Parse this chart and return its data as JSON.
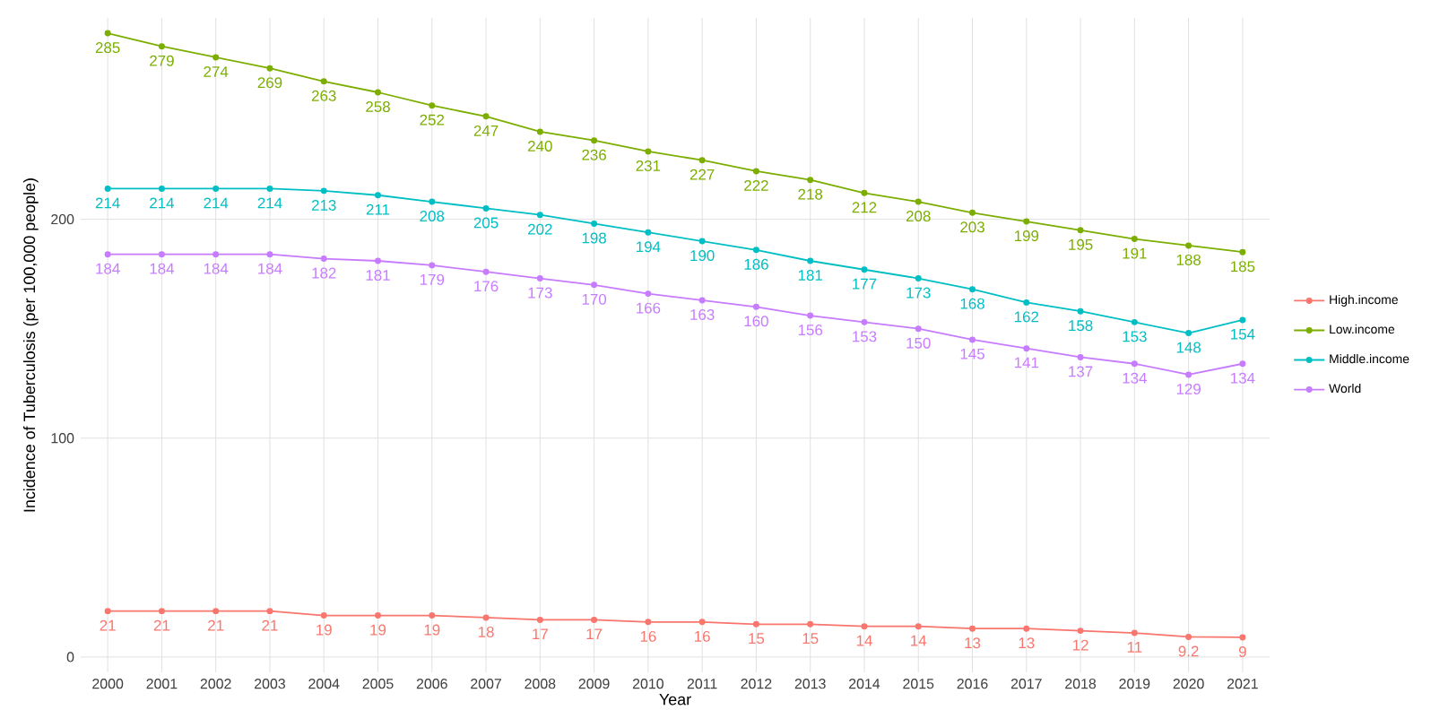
{
  "chart_data": {
    "type": "line",
    "xlabel": "Year",
    "ylabel": "Incidence of Tuberculosis (per 100,000 people)",
    "categories": [
      "2000",
      "2001",
      "2002",
      "2003",
      "2004",
      "2005",
      "2006",
      "2007",
      "2008",
      "2009",
      "2010",
      "2011",
      "2012",
      "2013",
      "2014",
      "2015",
      "2016",
      "2017",
      "2018",
      "2019",
      "2020",
      "2021"
    ],
    "series": [
      {
        "name": "High.income",
        "color": "#f8766d",
        "values": [
          21,
          21,
          21,
          21,
          19,
          19,
          19,
          18,
          17,
          17,
          16,
          16,
          15,
          15,
          14,
          14,
          13,
          13,
          12,
          11,
          9.2,
          9
        ]
      },
      {
        "name": "Low.income",
        "color": "#7cae00",
        "values": [
          285,
          279,
          274,
          269,
          263,
          258,
          252,
          247,
          240,
          236,
          231,
          227,
          222,
          218,
          212,
          208,
          203,
          199,
          195,
          191,
          188,
          185
        ]
      },
      {
        "name": "Middle.income",
        "color": "#00bfc4",
        "values": [
          214,
          214,
          214,
          214,
          213,
          211,
          208,
          205,
          202,
          198,
          194,
          190,
          186,
          181,
          177,
          173,
          168,
          162,
          158,
          153,
          148,
          154
        ]
      },
      {
        "name": "World",
        "color": "#c77cff",
        "values": [
          184,
          184,
          184,
          184,
          182,
          181,
          179,
          176,
          173,
          170,
          166,
          163,
          160,
          156,
          153,
          150,
          145,
          141,
          137,
          134,
          129,
          134
        ]
      }
    ],
    "ylim": [
      -7,
      292
    ],
    "yticks": [
      0,
      100,
      200
    ],
    "grid": true,
    "legend": "right",
    "marker": "circle",
    "data_labels": true
  }
}
